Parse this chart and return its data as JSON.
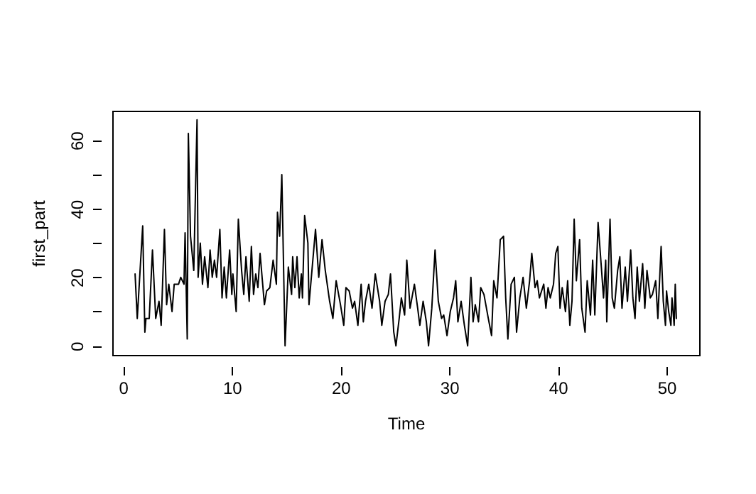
{
  "chart_data": {
    "type": "line",
    "xlabel": "Time",
    "ylabel": "first_part",
    "xlim": [
      -1,
      53
    ],
    "ylim": [
      -2.64,
      68.64
    ],
    "xticks": [
      0,
      10,
      20,
      30,
      40,
      50
    ],
    "yticks": [
      0,
      {
        "value": 10,
        "label": null
      },
      20,
      {
        "value": 30,
        "label": null
      },
      40,
      {
        "value": 50,
        "label": null
      },
      60
    ],
    "grid": false,
    "legend": false,
    "line_style": "solid",
    "marker": "none",
    "series": [
      {
        "color": "#000000",
        "x": [
          1.1,
          1.3,
          1.8,
          2.0,
          2.1,
          2.4,
          2.7,
          3.0,
          3.3,
          3.5,
          3.8,
          4.0,
          4.2,
          4.5,
          4.7,
          5.1,
          5.3,
          5.6,
          5.7,
          5.9,
          6.0,
          6.2,
          6.5,
          6.8,
          6.9,
          7.1,
          7.3,
          7.5,
          7.8,
          8.0,
          8.2,
          8.4,
          8.6,
          8.9,
          9.1,
          9.3,
          9.5,
          9.8,
          10.0,
          10.1,
          10.4,
          10.6,
          10.9,
          11.1,
          11.3,
          11.6,
          11.8,
          12.0,
          12.2,
          12.4,
          12.6,
          13.0,
          13.2,
          13.5,
          13.8,
          14.1,
          14.2,
          14.4,
          14.6,
          14.9,
          15.2,
          15.5,
          15.6,
          15.8,
          16.0,
          16.2,
          16.4,
          16.5,
          16.7,
          17.0,
          17.1,
          17.7,
          18.0,
          18.3,
          18.6,
          19.0,
          19.3,
          19.6,
          20.0,
          20.3,
          20.5,
          20.8,
          21.1,
          21.3,
          21.6,
          21.9,
          22.1,
          22.3,
          22.6,
          22.9,
          23.2,
          23.6,
          23.8,
          24.1,
          24.4,
          24.6,
          24.9,
          25.1,
          25.4,
          25.6,
          25.9,
          26.1,
          26.4,
          26.8,
          27.1,
          27.3,
          27.6,
          27.9,
          28.1,
          28.4,
          28.7,
          29.0,
          29.3,
          29.5,
          29.8,
          30.1,
          30.4,
          30.6,
          30.8,
          31.1,
          31.4,
          31.7,
          32.0,
          32.2,
          32.4,
          32.7,
          32.9,
          33.2,
          33.6,
          33.9,
          34.1,
          34.4,
          34.7,
          35.0,
          35.2,
          35.4,
          35.7,
          36.0,
          36.2,
          36.5,
          36.8,
          37.1,
          37.4,
          37.6,
          37.9,
          38.1,
          38.3,
          38.7,
          38.9,
          39.1,
          39.3,
          39.6,
          39.8,
          40.0,
          40.2,
          40.4,
          40.7,
          40.9,
          41.1,
          41.3,
          41.5,
          41.7,
          42.0,
          42.2,
          42.5,
          42.7,
          43.0,
          43.2,
          43.4,
          43.7,
          44.0,
          44.2,
          44.4,
          44.5,
          44.8,
          45.0,
          45.2,
          45.5,
          45.7,
          45.9,
          46.2,
          46.4,
          46.7,
          46.9,
          47.1,
          47.3,
          47.5,
          47.8,
          48.0,
          48.2,
          48.5,
          48.7,
          49.0,
          49.2,
          49.5,
          49.7,
          49.9,
          50.0,
          50.2,
          50.4,
          50.5,
          50.7,
          50.8,
          50.9
        ],
        "values": [
          21,
          8,
          35,
          4,
          8,
          8,
          28,
          8,
          13,
          6,
          34,
          12,
          18,
          10,
          18,
          18,
          20,
          18,
          33,
          2,
          62,
          32,
          22,
          66,
          20,
          30,
          18,
          26,
          17,
          28,
          20,
          25,
          20,
          34,
          14,
          23,
          14,
          28,
          15,
          21,
          10,
          37,
          22,
          15,
          26,
          13,
          29,
          15,
          21,
          17,
          27,
          12,
          16,
          17,
          25,
          18,
          39,
          32,
          50,
          0,
          23,
          15,
          26,
          17,
          26,
          14,
          21,
          14,
          38,
          30,
          12,
          34,
          20,
          31,
          22,
          13,
          8,
          19,
          12,
          6,
          17,
          16,
          11,
          13,
          6,
          18,
          7,
          13,
          18,
          11,
          21,
          13,
          6,
          13,
          15,
          21,
          4,
          0,
          8,
          14,
          9,
          25,
          11,
          18,
          11,
          6,
          13,
          7,
          0,
          11,
          28,
          13,
          8,
          9,
          3,
          10,
          14,
          19,
          7,
          13,
          6,
          0,
          20,
          7,
          12,
          7,
          17,
          15,
          8,
          3,
          19,
          14,
          31,
          32,
          14,
          2,
          18,
          20,
          4,
          14,
          20,
          11,
          19,
          27,
          17,
          19,
          14,
          18,
          11,
          17,
          14,
          18,
          27,
          29,
          11,
          17,
          10,
          19,
          6,
          13,
          37,
          19,
          31,
          11,
          4,
          19,
          9,
          25,
          9,
          36,
          23,
          14,
          25,
          7,
          37,
          14,
          11,
          22,
          26,
          11,
          23,
          13,
          28,
          14,
          8,
          23,
          13,
          24,
          11,
          22,
          14,
          15,
          19,
          8,
          29,
          13,
          6,
          16,
          10,
          6,
          14,
          6,
          18,
          8
        ]
      }
    ]
  }
}
